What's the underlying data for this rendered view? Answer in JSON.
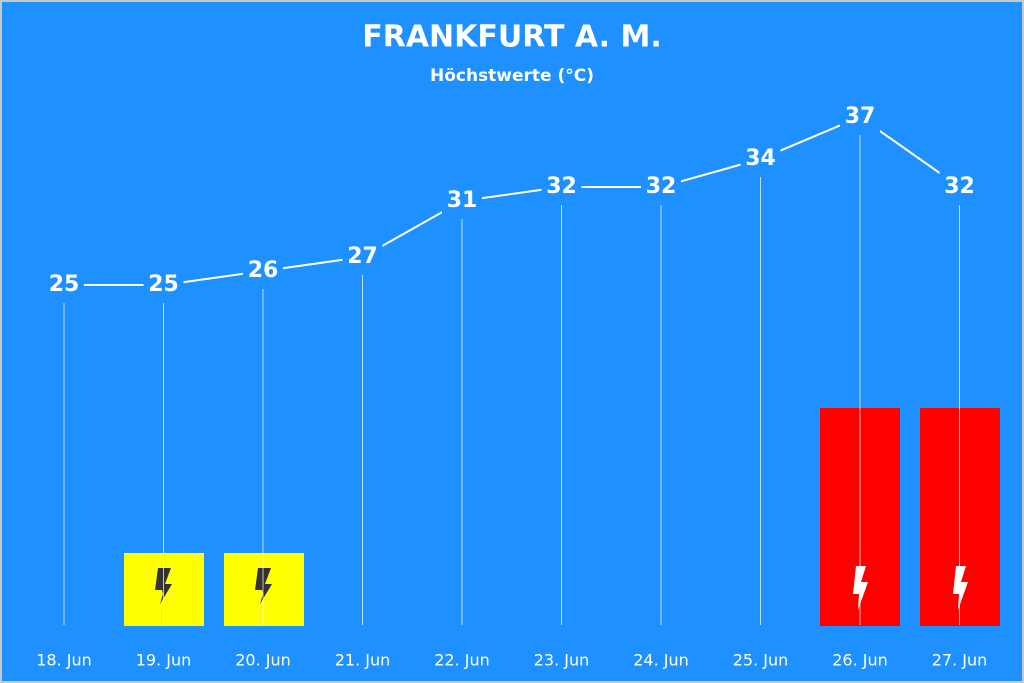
{
  "chart_data": {
    "type": "line",
    "title": "FRANKFURT A. M.",
    "subtitle": "Höchstwerte (°C)",
    "categories": [
      "18. Jun",
      "19. Jun",
      "20. Jun",
      "21. Jun",
      "22. Jun",
      "23. Jun",
      "24. Jun",
      "25. Jun",
      "26. Jun",
      "27. Jun"
    ],
    "values": [
      25,
      25,
      26,
      27,
      31,
      32,
      32,
      34,
      37,
      32
    ],
    "color": "#ffffff"
  }
}
